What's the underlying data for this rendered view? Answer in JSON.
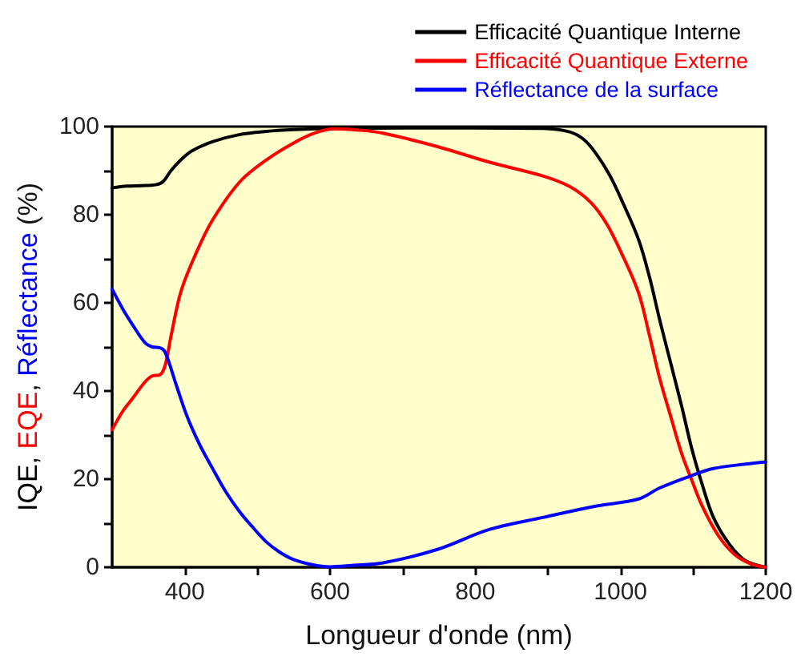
{
  "chart_data": {
    "type": "line",
    "xlabel": "Longueur d'onde (nm)",
    "ylabel": "IQE, EQE, Réflectance (%)",
    "xlim": [
      300,
      1200
    ],
    "xticks": [
      400,
      {
        "value": 500,
        "label": null
      },
      600,
      {
        "value": 700,
        "label": null
      },
      800,
      {
        "value": 900,
        "label": null
      },
      1000,
      {
        "value": 1100,
        "label": null
      },
      1200
    ],
    "ylim": [
      0,
      100
    ],
    "yticks": [
      0,
      {
        "value": 10,
        "label": null
      },
      20,
      {
        "value": 30,
        "label": null
      },
      40,
      {
        "value": 50,
        "label": null
      },
      60,
      {
        "value": 70,
        "label": null
      },
      80,
      {
        "value": 90,
        "label": null
      },
      100
    ],
    "grid": false,
    "legend": "top right",
    "series": [
      {
        "name": "Efficacité Quantique Interne",
        "color": "#000000",
        "x": [
          300,
          320,
          340,
          360,
          370,
          381,
          395,
          410,
          439,
          476,
          512,
          550,
          600,
          700,
          800,
          893,
          930,
          950,
          967,
          985,
          1003,
          1025,
          1040,
          1054,
          1069,
          1084,
          1098,
          1113,
          1128,
          1150,
          1172,
          1200
        ],
        "values": [
          86.1,
          86.5,
          86.6,
          86.8,
          87.5,
          90,
          92.5,
          94.5,
          96.6,
          98.2,
          98.9,
          99.3,
          99.6,
          99.7,
          99.7,
          99.6,
          98.8,
          97,
          93.7,
          89,
          82.8,
          74.3,
          65.8,
          56.1,
          46.4,
          36.7,
          27.0,
          18.5,
          11.3,
          5.2,
          1.5,
          0
        ]
      },
      {
        "name": "Efficacité Quantique Externe",
        "color": "#ff0000",
        "x": [
          300,
          315,
          329,
          345,
          355,
          366,
          373,
          381,
          395,
          417,
          439,
          476,
          512,
          549,
          580,
          607,
          640,
          673,
          747,
          820,
          893,
          930,
          959,
          981,
          1003,
          1025,
          1040,
          1054,
          1069,
          1084,
          1098,
          1113,
          1135,
          1157,
          1179,
          1200
        ],
        "values": [
          31.2,
          35.5,
          38.5,
          42,
          43.4,
          43.7,
          45.8,
          52.4,
          62.7,
          71.8,
          79,
          87.5,
          92.4,
          96.2,
          98.6,
          99.5,
          99.2,
          98.5,
          95.5,
          91.9,
          88.8,
          86.4,
          82.8,
          77.9,
          70.7,
          62.2,
          52.5,
          42.8,
          34.3,
          25.9,
          19.8,
          13.7,
          7.1,
          2.9,
          0.8,
          0
        ]
      },
      {
        "name": "Réflectance de la surface",
        "color": "#0000ff",
        "x": [
          300,
          315,
          329,
          345,
          355,
          366,
          373,
          388,
          403,
          420,
          439,
          457,
          476,
          494,
          512,
          530,
          549,
          575,
          600,
          630,
          673,
          747,
          820,
          893,
          967,
          1025,
          1054,
          1098,
          1128,
          1172,
          1200
        ],
        "values": [
          63.1,
          58.5,
          54.8,
          51,
          50,
          49.8,
          48.8,
          41.5,
          34.3,
          28,
          22.2,
          17,
          12.5,
          9,
          5.8,
          3.5,
          1.8,
          0.6,
          0.1,
          0.4,
          1.0,
          4.0,
          8.6,
          11.3,
          13.9,
          15.5,
          18,
          20.8,
          22.4,
          23.4,
          23.9
        ]
      }
    ]
  }
}
